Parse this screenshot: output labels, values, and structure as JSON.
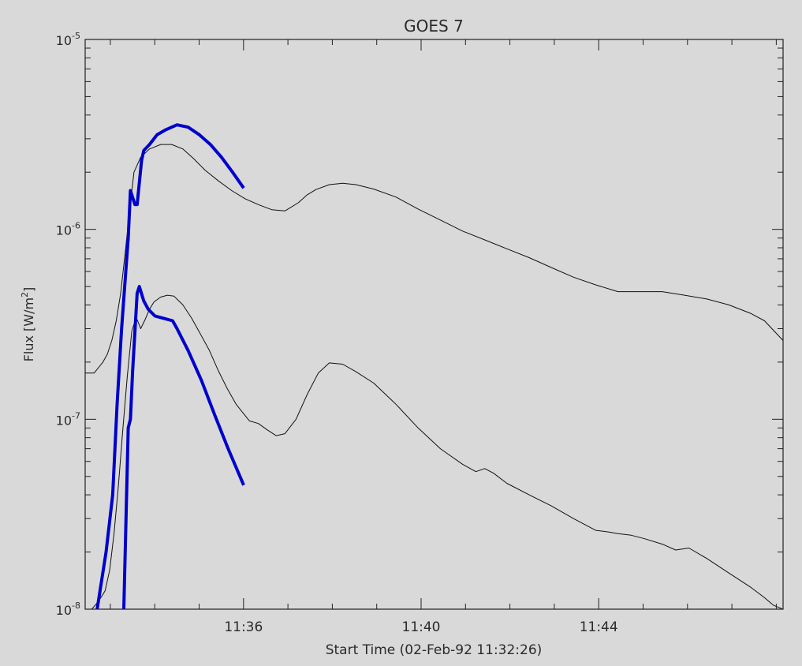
{
  "chart_data": {
    "type": "line",
    "title": "GOES 7",
    "xlabel": "Start Time (02-Feb-92 11:32:26)",
    "ylabel": "Flux [W/m",
    "ylabel_sup": "2",
    "ylabel_close": "]",
    "y_scale": "log",
    "ylim": [
      1e-08,
      1e-05
    ],
    "xlim_minutes": [
      0,
      15.72
    ],
    "y_tick_labels": [
      {
        "base": "10",
        "exp": "-8",
        "value": 1e-08
      },
      {
        "base": "10",
        "exp": "-7",
        "value": 1e-07
      },
      {
        "base": "10",
        "exp": "-6",
        "value": 1e-06
      },
      {
        "base": "10",
        "exp": "-5",
        "value": 1e-05
      }
    ],
    "x_tick_labels": [
      {
        "label": "11:36",
        "minutes": 3.567
      },
      {
        "label": "11:40",
        "minutes": 7.567
      },
      {
        "label": "11:44",
        "minutes": 11.567
      }
    ],
    "grid": false,
    "legend": "none",
    "series": [
      {
        "color": "#111111",
        "width": 1,
        "x": [
          0,
          0.2,
          0.4,
          0.5,
          0.6,
          0.7,
          0.8,
          0.9,
          1.0,
          1.1,
          1.25,
          1.45,
          1.7,
          1.95,
          2.2,
          2.45,
          2.7,
          3.0,
          3.3,
          3.6,
          3.9,
          4.2,
          4.5,
          4.8,
          5.0,
          5.2,
          5.5,
          5.8,
          6.1,
          6.5,
          7.0,
          7.5,
          8.0,
          8.5,
          9.0,
          9.5,
          10.0,
          10.5,
          11.0,
          11.5,
          12.0,
          12.5,
          13.0,
          13.5,
          14.0,
          14.5,
          15.0,
          15.3,
          15.72
        ],
        "y": [
          1.75e-07,
          1.75e-07,
          2e-07,
          2.2e-07,
          2.6e-07,
          3.3e-07,
          4.6e-07,
          7.5e-07,
          1.25e-06,
          2e-06,
          2.4e-06,
          2.65e-06,
          2.8e-06,
          2.8e-06,
          2.65e-06,
          2.35e-06,
          2.05e-06,
          1.8e-06,
          1.6e-06,
          1.45e-06,
          1.35e-06,
          1.27e-06,
          1.25e-06,
          1.38e-06,
          1.52e-06,
          1.62e-06,
          1.72e-06,
          1.75e-06,
          1.72e-06,
          1.63e-06,
          1.48e-06,
          1.28e-06,
          1.12e-06,
          9.8e-07,
          8.8e-07,
          7.9e-07,
          7.1e-07,
          6.3e-07,
          5.6e-07,
          5.1e-07,
          4.7e-07,
          4.7e-07,
          4.7e-07,
          4.5e-07,
          4.3e-07,
          4e-07,
          3.6e-07,
          3.3e-07,
          2.6e-07
        ]
      },
      {
        "color": "#111111",
        "width": 1,
        "x": [
          0.15,
          0.3,
          0.45,
          0.55,
          0.65,
          0.75,
          0.85,
          0.95,
          1.05,
          1.15,
          1.25,
          1.35,
          1.45,
          1.55,
          1.7,
          1.85,
          2.0,
          2.2,
          2.4,
          2.6,
          2.8,
          3.0,
          3.2,
          3.4,
          3.7,
          3.9,
          4.1,
          4.3,
          4.5,
          4.75,
          5.0,
          5.25,
          5.5,
          5.8,
          6.1,
          6.5,
          7.0,
          7.5,
          8.0,
          8.5,
          8.8,
          9.0,
          9.2,
          9.5,
          10.0,
          10.5,
          11.0,
          11.5,
          11.8,
          12.0,
          12.3,
          12.6,
          13.0,
          13.3,
          13.6,
          14.0,
          14.5,
          15.0,
          15.3,
          15.5,
          15.72
        ],
        "y": [
          1e-08,
          1.1e-08,
          1.25e-08,
          1.6e-08,
          2.5e-08,
          4.5e-08,
          9e-08,
          1.7e-07,
          2.9e-07,
          3.45e-07,
          3e-07,
          3.35e-07,
          3.8e-07,
          4.15e-07,
          4.4e-07,
          4.5e-07,
          4.45e-07,
          4e-07,
          3.4e-07,
          2.8e-07,
          2.3e-07,
          1.8e-07,
          1.45e-07,
          1.2e-07,
          9.8e-08,
          9.5e-08,
          8.8e-08,
          8.2e-08,
          8.4e-08,
          1e-07,
          1.35e-07,
          1.75e-07,
          1.98e-07,
          1.95e-07,
          1.78e-07,
          1.55e-07,
          1.2e-07,
          9e-08,
          7e-08,
          5.8e-08,
          5.3e-08,
          5.5e-08,
          5.2e-08,
          4.6e-08,
          4e-08,
          3.5e-08,
          3e-08,
          2.6e-08,
          2.55e-08,
          2.5e-08,
          2.45e-08,
          2.35e-08,
          2.2e-08,
          2.05e-08,
          2.1e-08,
          1.85e-08,
          1.55e-08,
          1.3e-08,
          1.15e-08,
          1.05e-08,
          1e-08
        ]
      },
      {
        "color": "#0000cc",
        "width": 4,
        "x": [
          0.27,
          0.47,
          0.62,
          0.72,
          0.82,
          0.97,
          1.02,
          1.12,
          1.17,
          1.27,
          1.32,
          1.45,
          1.62,
          1.82,
          2.07,
          2.32,
          2.57,
          2.82,
          3.07,
          3.32,
          3.57
        ],
        "y": [
          1e-08,
          2e-08,
          4e-08,
          1.2e-07,
          3e-07,
          9e-07,
          1.6e-06,
          1.35e-06,
          1.35e-06,
          2.3e-06,
          2.6e-06,
          2.8e-06,
          3.15e-06,
          3.35e-06,
          3.55e-06,
          3.45e-06,
          3.15e-06,
          2.8e-06,
          2.4e-06,
          2e-06,
          1.65e-06
        ]
      },
      {
        "color": "#0000cc",
        "width": 4,
        "x": [
          0.87,
          0.92,
          0.97,
          1.02,
          1.07,
          1.17,
          1.22,
          1.32,
          1.42,
          1.57,
          1.77,
          1.97,
          2.07,
          2.32,
          2.62,
          2.92,
          3.22,
          3.57
        ],
        "y": [
          1e-08,
          3e-08,
          9e-08,
          1e-07,
          1.8e-07,
          4.6e-07,
          5e-07,
          4.2e-07,
          3.8e-07,
          3.5e-07,
          3.4e-07,
          3.3e-07,
          3e-07,
          2.3e-07,
          1.6e-07,
          1.05e-07,
          7e-08,
          4.5e-08
        ]
      }
    ]
  }
}
